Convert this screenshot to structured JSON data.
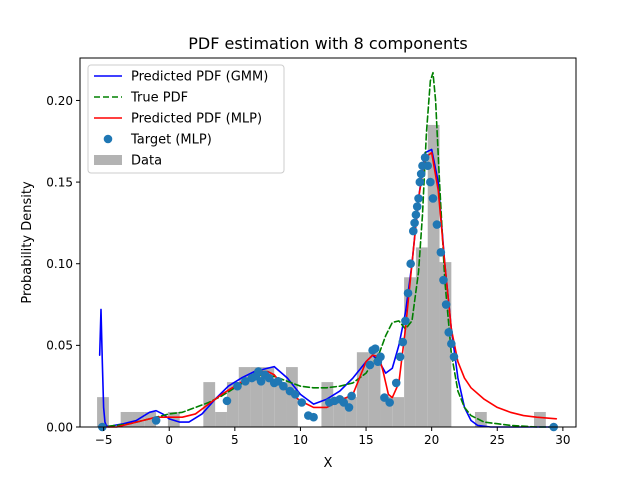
{
  "chart_data": {
    "type": "line",
    "title": "PDF estimation with 8 components",
    "xlabel": "X",
    "ylabel": "Probability Density",
    "xlim": [
      -6.8,
      31.0
    ],
    "ylim": [
      0.0,
      0.226
    ],
    "xticks": [
      -5,
      0,
      5,
      10,
      15,
      20,
      25,
      30
    ],
    "xtick_labels": [
      "−5",
      "0",
      "5",
      "10",
      "15",
      "20",
      "25",
      "30"
    ],
    "yticks": [
      0.0,
      0.05,
      0.1,
      0.15,
      0.2
    ],
    "ytick_labels": [
      "0.00",
      "0.05",
      "0.10",
      "0.15",
      "0.20"
    ],
    "grid": false,
    "legend_position": "upper-left",
    "legend": [
      {
        "label": "Predicted PDF (GMM)",
        "kind": "line",
        "color": "#0000ff",
        "dash": "solid"
      },
      {
        "label": "True PDF",
        "kind": "line",
        "color": "#008000",
        "dash": "dashed"
      },
      {
        "label": "Predicted PDF (MLP)",
        "kind": "line",
        "color": "#ff0000",
        "dash": "solid"
      },
      {
        "label": "Target (MLP)",
        "kind": "marker",
        "color": "#1f77b4"
      },
      {
        "label": "Data",
        "kind": "patch",
        "color": "#b3b3b3"
      }
    ],
    "histogram": {
      "name": "Data",
      "color": "#b3b3b3",
      "bin_width": 0.9,
      "bins": [
        [
          -5.05,
          0.0183
        ],
        [
          -3.25,
          0.0092
        ],
        [
          -2.35,
          0.0092
        ],
        [
          -1.45,
          0.0092
        ],
        [
          0.35,
          0.0092
        ],
        [
          3.05,
          0.0275
        ],
        [
          3.95,
          0.0092
        ],
        [
          4.85,
          0.0275
        ],
        [
          5.75,
          0.0367
        ],
        [
          6.65,
          0.0367
        ],
        [
          7.55,
          0.0367
        ],
        [
          8.45,
          0.0275
        ],
        [
          9.35,
          0.0367
        ],
        [
          12.05,
          0.0275
        ],
        [
          12.95,
          0.0183
        ],
        [
          13.85,
          0.0183
        ],
        [
          14.75,
          0.0458
        ],
        [
          15.65,
          0.0458
        ],
        [
          16.55,
          0.0183
        ],
        [
          17.45,
          0.0183
        ],
        [
          18.35,
          0.0917
        ],
        [
          19.25,
          0.11
        ],
        [
          20.15,
          0.185
        ],
        [
          21.05,
          0.101
        ],
        [
          23.75,
          0.0092
        ],
        [
          28.25,
          0.0092
        ]
      ]
    },
    "series": [
      {
        "name": "Predicted PDF (GMM)",
        "color": "#0000ff",
        "style": "solid",
        "x": [
          -5.3,
          -5.2,
          -5.1,
          -5.0,
          -4.9,
          -4.8,
          -4.6,
          -4.2,
          -3.5,
          -2.5,
          -1.5,
          -1.0,
          -0.5,
          0.0,
          0.8,
          1.5,
          2.5,
          3.5,
          4.5,
          5.5,
          6.5,
          7.5,
          8.0,
          9.0,
          10.0,
          11.0,
          12.0,
          13.0,
          14.0,
          15.0,
          15.5,
          16.0,
          16.5,
          17.0,
          17.5,
          18.0,
          18.5,
          19.0,
          19.5,
          20.0,
          20.5,
          21.0,
          21.5,
          22.0,
          22.5,
          23.0,
          23.5,
          24.5,
          26.0,
          28.0,
          29.5
        ],
        "y": [
          0.044,
          0.072,
          0.04,
          0.012,
          0.003,
          0.001,
          0.0,
          0.001,
          0.002,
          0.004,
          0.009,
          0.01,
          0.008,
          0.005,
          0.003,
          0.003,
          0.008,
          0.017,
          0.025,
          0.03,
          0.034,
          0.036,
          0.037,
          0.03,
          0.02,
          0.014,
          0.017,
          0.022,
          0.03,
          0.04,
          0.044,
          0.04,
          0.033,
          0.036,
          0.05,
          0.07,
          0.1,
          0.14,
          0.168,
          0.17,
          0.15,
          0.1,
          0.06,
          0.03,
          0.012,
          0.004,
          0.001,
          0.0,
          0.0,
          0.0,
          0.0
        ]
      },
      {
        "name": "True PDF",
        "color": "#008000",
        "style": "dashed",
        "x": [
          -5.3,
          -4.0,
          -3.0,
          -2.0,
          -1.0,
          0.0,
          1.0,
          2.0,
          3.0,
          4.0,
          5.0,
          6.0,
          7.0,
          8.0,
          9.0,
          10.0,
          11.0,
          12.0,
          13.0,
          14.0,
          15.0,
          16.0,
          16.5,
          17.0,
          17.5,
          18.0,
          18.5,
          19.0,
          19.3,
          19.6,
          19.9,
          20.1,
          20.3,
          20.6,
          21.0,
          21.5,
          22.0,
          22.5,
          23.0,
          24.0,
          25.0,
          26.0,
          28.0,
          29.5
        ],
        "y": [
          0.0,
          0.001,
          0.002,
          0.004,
          0.006,
          0.008,
          0.009,
          0.012,
          0.015,
          0.019,
          0.024,
          0.029,
          0.032,
          0.031,
          0.028,
          0.025,
          0.024,
          0.024,
          0.025,
          0.027,
          0.033,
          0.045,
          0.056,
          0.064,
          0.065,
          0.06,
          0.065,
          0.095,
          0.13,
          0.18,
          0.212,
          0.217,
          0.2,
          0.15,
          0.09,
          0.045,
          0.022,
          0.012,
          0.007,
          0.003,
          0.002,
          0.001,
          0.0,
          0.0
        ]
      },
      {
        "name": "Predicted PDF (MLP)",
        "color": "#ff0000",
        "style": "solid",
        "x": [
          -5.3,
          -4.0,
          -3.0,
          -2.0,
          -1.0,
          0.0,
          1.0,
          2.0,
          3.0,
          4.0,
          5.0,
          6.0,
          7.0,
          7.5,
          8.0,
          8.5,
          9.0,
          10.0,
          11.0,
          12.0,
          13.0,
          14.0,
          15.0,
          15.5,
          16.0,
          16.3,
          16.7,
          17.0,
          17.5,
          18.0,
          18.5,
          19.0,
          19.5,
          20.0,
          20.5,
          21.0,
          21.5,
          22.0,
          22.5,
          23.0,
          24.0,
          25.0,
          26.0,
          27.0,
          28.0,
          29.5
        ],
        "y": [
          0.0,
          0.0,
          0.002,
          0.004,
          0.006,
          0.006,
          0.006,
          0.008,
          0.014,
          0.02,
          0.025,
          0.03,
          0.034,
          0.034,
          0.032,
          0.027,
          0.022,
          0.016,
          0.012,
          0.012,
          0.016,
          0.02,
          0.04,
          0.044,
          0.043,
          0.034,
          0.02,
          0.018,
          0.027,
          0.06,
          0.1,
          0.14,
          0.165,
          0.168,
          0.145,
          0.1,
          0.06,
          0.04,
          0.03,
          0.024,
          0.017,
          0.012,
          0.009,
          0.007,
          0.006,
          0.005
        ]
      },
      {
        "name": "Target (MLP)",
        "color": "#1f77b4",
        "style": "marker",
        "x": [
          -5.1,
          -1.0,
          4.4,
          5.2,
          5.8,
          6.3,
          6.6,
          6.8,
          7.0,
          7.3,
          7.6,
          8.0,
          8.3,
          8.7,
          9.2,
          9.6,
          10.1,
          10.6,
          11.0,
          12.2,
          12.6,
          13.0,
          13.3,
          13.7,
          13.9,
          15.3,
          15.5,
          15.7,
          15.9,
          16.1,
          16.4,
          16.8,
          17.3,
          17.6,
          17.8,
          18.0,
          18.2,
          18.4,
          18.6,
          18.7,
          18.8,
          18.9,
          19.0,
          19.1,
          19.2,
          19.3,
          19.5,
          19.7,
          19.9,
          20.1,
          20.4,
          20.7,
          20.9,
          21.1,
          21.3,
          21.5,
          21.7,
          29.3
        ],
        "y": [
          0.0,
          0.004,
          0.016,
          0.025,
          0.028,
          0.03,
          0.031,
          0.034,
          0.028,
          0.032,
          0.03,
          0.027,
          0.028,
          0.025,
          0.022,
          0.02,
          0.015,
          0.007,
          0.006,
          0.015,
          0.016,
          0.017,
          0.015,
          0.012,
          0.019,
          0.038,
          0.047,
          0.048,
          0.04,
          0.043,
          0.018,
          0.015,
          0.027,
          0.043,
          0.052,
          0.065,
          0.082,
          0.1,
          0.12,
          0.125,
          0.13,
          0.135,
          0.14,
          0.15,
          0.155,
          0.16,
          0.165,
          0.16,
          0.15,
          0.14,
          0.124,
          0.107,
          0.09,
          0.075,
          0.058,
          0.051,
          0.043,
          0.0
        ]
      }
    ]
  }
}
